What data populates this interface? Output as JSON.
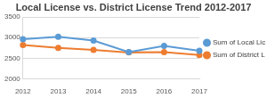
{
  "chart_data": {
    "type": "line",
    "title": "Local License vs. District License Trend 2012-2017",
    "categories": [
      "2012",
      "2013",
      "2014",
      "2015",
      "2016",
      "2017"
    ],
    "series": [
      {
        "name": "Sum of Local Licensed",
        "color": "#5b9bd5",
        "marker": "circle",
        "line_style": "solid",
        "values": [
          2960,
          3020,
          2930,
          2650,
          2800,
          2680
        ]
      },
      {
        "name": "Sum of District Licensed",
        "color": "#ed7d31",
        "marker": "circle",
        "line_style": "solid",
        "values": [
          2820,
          2750,
          2700,
          2640,
          2650,
          2580
        ]
      }
    ],
    "ylim": [
      2000,
      3500
    ],
    "yticks": [
      2000,
      2500,
      3000,
      3500
    ],
    "grid": true,
    "legend": "right"
  }
}
